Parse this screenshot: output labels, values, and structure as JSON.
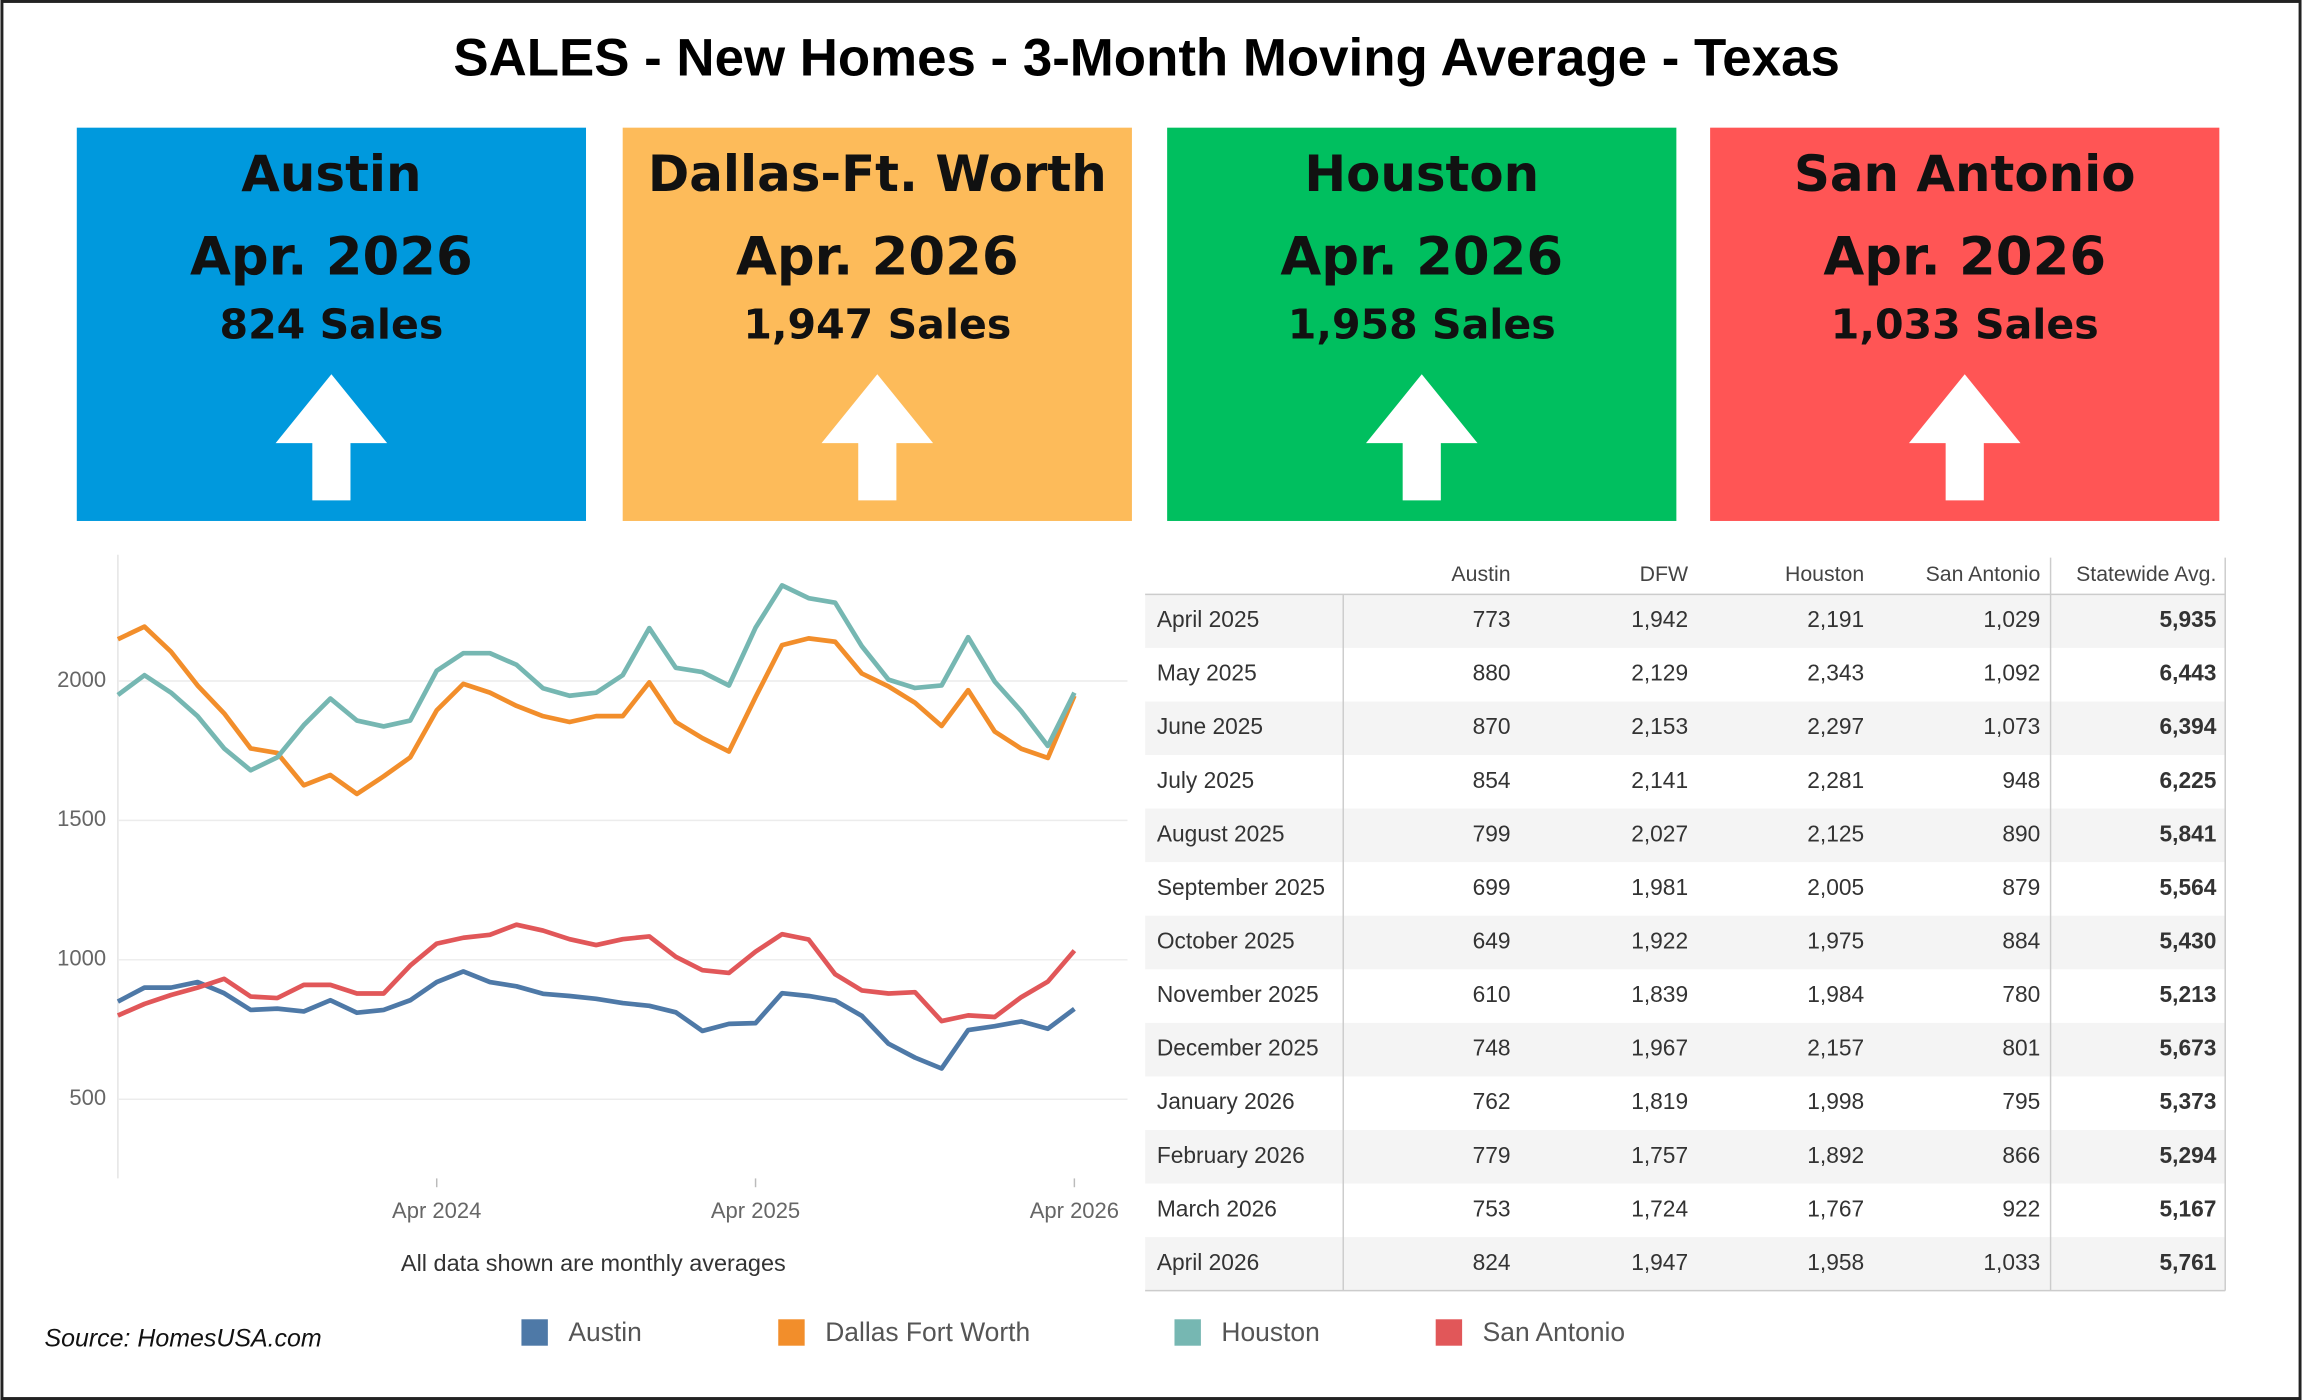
{
  "header": {
    "title": "SALES - New Homes - 3-Month Moving Average - Texas"
  },
  "cards": [
    {
      "city": "Austin",
      "date": "Apr. 2026",
      "sales": "824 Sales",
      "color": "#0099dd"
    },
    {
      "city": "Dallas-Ft. Worth",
      "date": "Apr. 2026",
      "sales": "1,947 Sales",
      "color": "#fdbb5a"
    },
    {
      "city": "Houston",
      "date": "Apr. 2026",
      "sales": "1,958 Sales",
      "color": "#00bf5f"
    },
    {
      "city": "San Antonio",
      "date": "Apr. 2026",
      "sales": "1,033 Sales",
      "color": "#ff5555"
    }
  ],
  "chart_data": {
    "type": "line",
    "x_label": "All data shown are monthly averages",
    "x": [
      "2023-04",
      "2023-05",
      "2023-06",
      "2023-07",
      "2023-08",
      "2023-09",
      "2023-10",
      "2023-11",
      "2023-12",
      "2024-01",
      "2024-02",
      "2024-03",
      "2024-04",
      "2024-05",
      "2024-06",
      "2024-07",
      "2024-08",
      "2024-09",
      "2024-10",
      "2024-11",
      "2024-12",
      "2025-01",
      "2025-02",
      "2025-03",
      "2025-04",
      "2025-05",
      "2025-06",
      "2025-07",
      "2025-08",
      "2025-09",
      "2025-10",
      "2025-11",
      "2025-12",
      "2026-01",
      "2026-02",
      "2026-03",
      "2026-04"
    ],
    "series": [
      {
        "name": "Austin",
        "color": "#4e79a7",
        "values": [
          850,
          900,
          900,
          920,
          880,
          820,
          825,
          815,
          855,
          810,
          820,
          855,
          920,
          958,
          920,
          905,
          878,
          870,
          860,
          845,
          835,
          812,
          745,
          770,
          773,
          880,
          870,
          854,
          799,
          699,
          649,
          610,
          748,
          762,
          779,
          753,
          824
        ]
      },
      {
        "name": "Dallas Fort Worth",
        "color": "#f28e2b",
        "values": [
          2150,
          2195,
          2105,
          1984,
          1884,
          1758,
          1742,
          1626,
          1663,
          1595,
          1658,
          1726,
          1895,
          1990,
          1958,
          1911,
          1874,
          1853,
          1874,
          1874,
          1995,
          1853,
          1795,
          1747,
          1942,
          2129,
          2153,
          2141,
          2027,
          1981,
          1922,
          1839,
          1967,
          1819,
          1757,
          1724,
          1947
        ]
      },
      {
        "name": "Houston",
        "color": "#76b7b2",
        "values": [
          1950,
          2021,
          1958,
          1874,
          1758,
          1680,
          1726,
          1842,
          1937,
          1858,
          1837,
          1858,
          2037,
          2100,
          2100,
          2058,
          1974,
          1947,
          1958,
          2021,
          2190,
          2047,
          2032,
          1984,
          2191,
          2343,
          2297,
          2281,
          2125,
          2005,
          1975,
          1984,
          2157,
          1998,
          1892,
          1767,
          1958
        ]
      },
      {
        "name": "San Antonio",
        "color": "#e15759",
        "values": [
          800,
          842,
          874,
          900,
          932,
          868,
          863,
          910,
          910,
          879,
          879,
          979,
          1058,
          1079,
          1090,
          1126,
          1105,
          1074,
          1053,
          1074,
          1084,
          1011,
          963,
          953,
          1029,
          1092,
          1073,
          948,
          890,
          879,
          884,
          780,
          801,
          795,
          866,
          922,
          1033
        ]
      }
    ],
    "xlim": [
      "2023-04",
      "2026-06"
    ],
    "xticks": [
      {
        "value": "2024-04",
        "label": "Apr 2024"
      },
      {
        "value": "2025-04",
        "label": "Apr 2025"
      },
      {
        "value": "2026-04",
        "label": "Apr 2026"
      }
    ],
    "ylim": [
      216,
      2453
    ],
    "yticks": [
      500,
      1000,
      1500,
      2000
    ],
    "grid": true
  },
  "table": {
    "columns": [
      "Austin",
      "DFW",
      "Houston",
      "San Antonio",
      "Statewide Avg."
    ],
    "rows": [
      {
        "label": "April 2025",
        "cells": [
          "773",
          "1,942",
          "2,191",
          "1,029",
          "5,935"
        ]
      },
      {
        "label": "May 2025",
        "cells": [
          "880",
          "2,129",
          "2,343",
          "1,092",
          "6,443"
        ]
      },
      {
        "label": "June 2025",
        "cells": [
          "870",
          "2,153",
          "2,297",
          "1,073",
          "6,394"
        ]
      },
      {
        "label": "July 2025",
        "cells": [
          "854",
          "2,141",
          "2,281",
          "948",
          "6,225"
        ]
      },
      {
        "label": "August 2025",
        "cells": [
          "799",
          "2,027",
          "2,125",
          "890",
          "5,841"
        ]
      },
      {
        "label": "September 2025",
        "cells": [
          "699",
          "1,981",
          "2,005",
          "879",
          "5,564"
        ]
      },
      {
        "label": "October 2025",
        "cells": [
          "649",
          "1,922",
          "1,975",
          "884",
          "5,430"
        ]
      },
      {
        "label": "November 2025",
        "cells": [
          "610",
          "1,839",
          "1,984",
          "780",
          "5,213"
        ]
      },
      {
        "label": "December 2025",
        "cells": [
          "748",
          "1,967",
          "2,157",
          "801",
          "5,673"
        ]
      },
      {
        "label": "January 2026",
        "cells": [
          "762",
          "1,819",
          "1,998",
          "795",
          "5,373"
        ]
      },
      {
        "label": "February 2026",
        "cells": [
          "779",
          "1,757",
          "1,892",
          "866",
          "5,294"
        ]
      },
      {
        "label": "March 2026",
        "cells": [
          "753",
          "1,724",
          "1,767",
          "922",
          "5,167"
        ]
      },
      {
        "label": "April 2026",
        "cells": [
          "824",
          "1,947",
          "1,958",
          "1,033",
          "5,761"
        ]
      }
    ]
  },
  "footer": {
    "source": "Source: HomesUSA.com"
  }
}
